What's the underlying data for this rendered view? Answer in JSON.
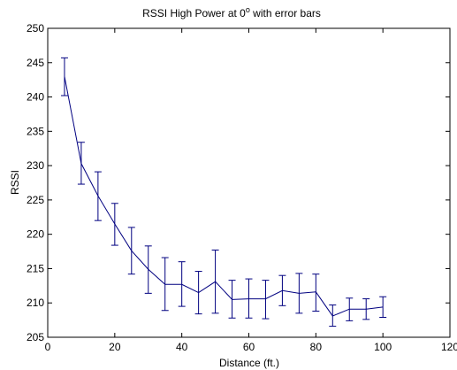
{
  "chart_data": {
    "type": "line",
    "title_prefix": "RSSI High Power at 0",
    "title_sup": "o",
    "title_suffix": " with error bars",
    "xlabel": "Distance (ft.)",
    "ylabel": "RSSI",
    "xlim": [
      0,
      120
    ],
    "ylim": [
      205,
      250
    ],
    "xticks": [
      0,
      20,
      40,
      60,
      80,
      100,
      120
    ],
    "yticks": [
      205,
      210,
      215,
      220,
      225,
      230,
      235,
      240,
      245,
      250
    ],
    "grid": false,
    "legend": "none",
    "series_color": "#000080",
    "series": [
      {
        "x": [
          5,
          10,
          15,
          20,
          25,
          30,
          35,
          40,
          45,
          50,
          55,
          60,
          65,
          70,
          75,
          80,
          85,
          90,
          95,
          100
        ],
        "y": [
          243.0,
          230.3,
          225.6,
          221.5,
          217.6,
          214.9,
          212.7,
          212.7,
          211.5,
          213.1,
          210.5,
          210.6,
          210.6,
          211.8,
          211.4,
          211.6,
          208.1,
          209.1,
          209.1,
          209.4
        ],
        "err_low": [
          240.2,
          227.3,
          222.0,
          218.4,
          214.2,
          211.4,
          208.9,
          209.5,
          208.4,
          208.5,
          207.8,
          207.8,
          207.7,
          209.6,
          208.5,
          208.8,
          206.6,
          207.4,
          207.6,
          207.9
        ],
        "err_high": [
          245.7,
          233.4,
          229.1,
          224.5,
          221.0,
          218.3,
          216.6,
          216.0,
          214.6,
          217.7,
          213.3,
          213.5,
          213.3,
          214.0,
          214.3,
          214.2,
          209.7,
          210.7,
          210.6,
          210.9
        ]
      }
    ]
  }
}
